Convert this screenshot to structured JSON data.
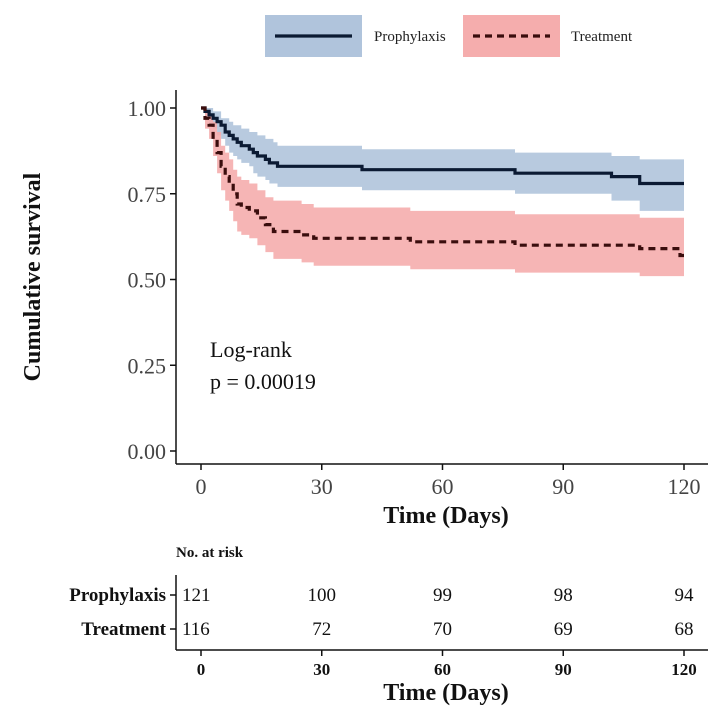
{
  "chart_data": {
    "type": "line",
    "subtype": "kaplan-meier",
    "xlabel": "Time (Days)",
    "ylabel": "Cumulative survival",
    "xlim": [
      0,
      120
    ],
    "ylim": [
      0,
      1
    ],
    "xticks": [
      "0",
      "30",
      "60",
      "90",
      "120"
    ],
    "yticks": [
      "0.00",
      "0.25",
      "0.50",
      "0.75",
      "1.00"
    ],
    "grid": false,
    "legend_position": "top",
    "annotation": [
      "Log-rank",
      "p = 0.00019"
    ],
    "series": [
      {
        "name": "Prophylaxis",
        "color": "#0b1a33",
        "band_color": "#b0c4dc",
        "line_style": "solid",
        "steps": [
          [
            0,
            1.0
          ],
          [
            1,
            0.99
          ],
          [
            2,
            0.98
          ],
          [
            3,
            0.97
          ],
          [
            4,
            0.96
          ],
          [
            5,
            0.95
          ],
          [
            6,
            0.93
          ],
          [
            7,
            0.92
          ],
          [
            8,
            0.91
          ],
          [
            9,
            0.9
          ],
          [
            10,
            0.89
          ],
          [
            12,
            0.88
          ],
          [
            13,
            0.87
          ],
          [
            14,
            0.86
          ],
          [
            16,
            0.85
          ],
          [
            17,
            0.84
          ],
          [
            19,
            0.83
          ],
          [
            40,
            0.82
          ],
          [
            78,
            0.81
          ],
          [
            102,
            0.8
          ],
          [
            109,
            0.78
          ],
          [
            120,
            0.78
          ]
        ],
        "upper": [
          [
            0,
            1.0
          ],
          [
            1,
            1.0
          ],
          [
            3,
            0.99
          ],
          [
            5,
            0.97
          ],
          [
            7,
            0.96
          ],
          [
            8,
            0.95
          ],
          [
            10,
            0.94
          ],
          [
            12,
            0.93
          ],
          [
            14,
            0.92
          ],
          [
            16,
            0.91
          ],
          [
            18,
            0.9
          ],
          [
            19,
            0.89
          ],
          [
            40,
            0.88
          ],
          [
            78,
            0.87
          ],
          [
            102,
            0.86
          ],
          [
            109,
            0.85
          ],
          [
            120,
            0.85
          ]
        ],
        "lower": [
          [
            0,
            1.0
          ],
          [
            1,
            0.97
          ],
          [
            2,
            0.95
          ],
          [
            3,
            0.94
          ],
          [
            4,
            0.92
          ],
          [
            5,
            0.91
          ],
          [
            6,
            0.89
          ],
          [
            7,
            0.87
          ],
          [
            8,
            0.86
          ],
          [
            9,
            0.85
          ],
          [
            10,
            0.84
          ],
          [
            12,
            0.83
          ],
          [
            13,
            0.81
          ],
          [
            14,
            0.8
          ],
          [
            16,
            0.79
          ],
          [
            17,
            0.78
          ],
          [
            19,
            0.77
          ],
          [
            40,
            0.76
          ],
          [
            78,
            0.75
          ],
          [
            102,
            0.73
          ],
          [
            109,
            0.7
          ],
          [
            120,
            0.7
          ]
        ]
      },
      {
        "name": "Treatment",
        "color": "#3a0d0d",
        "band_color": "#f5adad",
        "line_style": "dashed",
        "steps": [
          [
            0,
            1.0
          ],
          [
            1,
            0.97
          ],
          [
            2,
            0.95
          ],
          [
            3,
            0.91
          ],
          [
            4,
            0.87
          ],
          [
            5,
            0.83
          ],
          [
            6,
            0.8
          ],
          [
            7,
            0.78
          ],
          [
            8,
            0.75
          ],
          [
            9,
            0.72
          ],
          [
            10,
            0.71
          ],
          [
            12,
            0.7
          ],
          [
            14,
            0.68
          ],
          [
            16,
            0.66
          ],
          [
            18,
            0.64
          ],
          [
            25,
            0.63
          ],
          [
            28,
            0.62
          ],
          [
            52,
            0.61
          ],
          [
            78,
            0.6
          ],
          [
            109,
            0.59
          ],
          [
            119,
            0.57
          ],
          [
            120,
            0.57
          ]
        ],
        "upper": [
          [
            0,
            1.0
          ],
          [
            1,
            0.99
          ],
          [
            2,
            0.98
          ],
          [
            3,
            0.96
          ],
          [
            4,
            0.93
          ],
          [
            5,
            0.89
          ],
          [
            6,
            0.87
          ],
          [
            7,
            0.85
          ],
          [
            8,
            0.82
          ],
          [
            9,
            0.8
          ],
          [
            10,
            0.79
          ],
          [
            12,
            0.78
          ],
          [
            14,
            0.76
          ],
          [
            16,
            0.74
          ],
          [
            18,
            0.73
          ],
          [
            25,
            0.72
          ],
          [
            28,
            0.71
          ],
          [
            52,
            0.7
          ],
          [
            78,
            0.69
          ],
          [
            109,
            0.68
          ],
          [
            119,
            0.68
          ],
          [
            120,
            0.68
          ]
        ],
        "lower": [
          [
            0,
            1.0
          ],
          [
            1,
            0.94
          ],
          [
            2,
            0.91
          ],
          [
            3,
            0.86
          ],
          [
            4,
            0.81
          ],
          [
            5,
            0.76
          ],
          [
            6,
            0.73
          ],
          [
            7,
            0.7
          ],
          [
            8,
            0.67
          ],
          [
            9,
            0.64
          ],
          [
            10,
            0.63
          ],
          [
            12,
            0.62
          ],
          [
            14,
            0.6
          ],
          [
            16,
            0.58
          ],
          [
            18,
            0.56
          ],
          [
            25,
            0.55
          ],
          [
            28,
            0.54
          ],
          [
            52,
            0.53
          ],
          [
            78,
            0.52
          ],
          [
            109,
            0.51
          ],
          [
            119,
            0.51
          ],
          [
            120,
            0.51
          ]
        ]
      }
    ],
    "risk_table": {
      "title": "No. at risk",
      "times": [
        "0",
        "30",
        "60",
        "90",
        "120"
      ],
      "xlabel": "Time (Days)",
      "rows": [
        {
          "label": "Prophylaxis",
          "values": [
            "121",
            "100",
            "99",
            "98",
            "94"
          ]
        },
        {
          "label": "Treatment",
          "values": [
            "116",
            "72",
            "70",
            "69",
            "68"
          ]
        }
      ]
    }
  }
}
